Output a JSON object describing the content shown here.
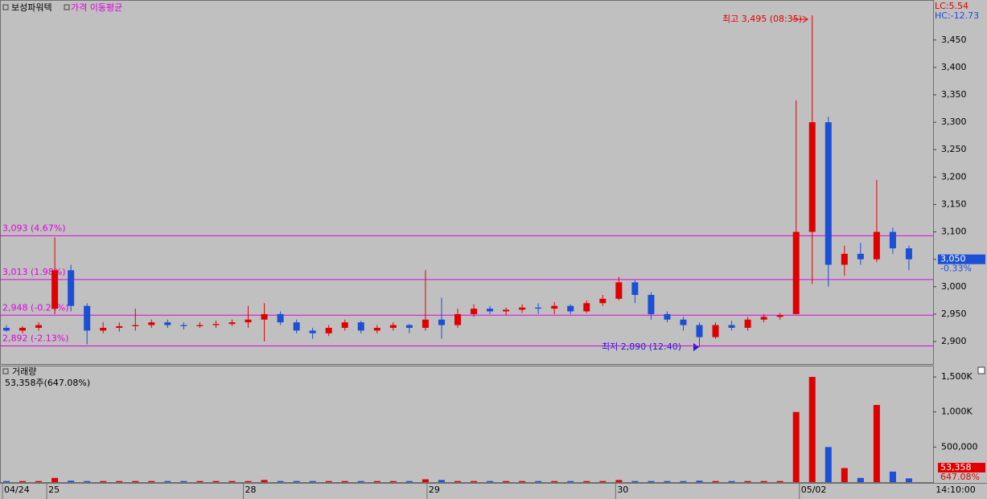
{
  "chart_data": {
    "type": "candlestick",
    "title": "보성파워텍",
    "indicator": "가격 이동평균",
    "lc": "LC:5.54",
    "hc": "HC:-12.73",
    "up_color": "#e00000",
    "down_color": "#1a4fd6",
    "ref_color": "#e000e0",
    "open": [
      2925,
      2920,
      2925,
      2960,
      3030,
      2965,
      2920,
      2925,
      2928,
      2930,
      2935,
      2930,
      2928,
      2930,
      2932,
      2935,
      2940,
      2950,
      2935,
      2920,
      2915,
      2925,
      2935,
      2920,
      2925,
      2930,
      2925,
      2940,
      2930,
      2950,
      2960,
      2955,
      2958,
      2962,
      2960,
      2965,
      2955,
      2970,
      2978,
      3008,
      2985,
      2950,
      2940,
      2930,
      2908,
      2930,
      2925,
      2940,
      2945,
      2950,
      3100,
      3300,
      3040,
      3060,
      3050,
      3100,
      3070
    ],
    "high": [
      2930,
      2928,
      2935,
      3090,
      3040,
      2970,
      2935,
      2935,
      2960,
      2940,
      2940,
      2935,
      2935,
      2938,
      2940,
      2965,
      2970,
      2955,
      2940,
      2925,
      2930,
      2940,
      2938,
      2930,
      2935,
      2932,
      3030,
      2980,
      2960,
      2968,
      2965,
      2962,
      2968,
      2970,
      2972,
      2968,
      2975,
      2985,
      3018,
      3012,
      2990,
      2955,
      2945,
      2935,
      2935,
      2938,
      2945,
      2950,
      2952,
      3340,
      3495,
      3310,
      3075,
      3080,
      3195,
      3108,
      3075
    ],
    "low": [
      2918,
      2915,
      2920,
      2950,
      2955,
      2895,
      2915,
      2918,
      2920,
      2925,
      2925,
      2922,
      2925,
      2925,
      2928,
      2925,
      2900,
      2930,
      2915,
      2905,
      2910,
      2920,
      2915,
      2915,
      2920,
      2915,
      2920,
      2905,
      2925,
      2945,
      2950,
      2948,
      2952,
      2950,
      2950,
      2950,
      2952,
      2965,
      2975,
      2970,
      2940,
      2935,
      2920,
      2890,
      2905,
      2920,
      2920,
      2935,
      2940,
      2950,
      3005,
      3000,
      3020,
      3040,
      3045,
      3060,
      3030
    ],
    "close": [
      2920,
      2925,
      2930,
      3030,
      2965,
      2920,
      2925,
      2928,
      2930,
      2935,
      2930,
      2928,
      2930,
      2932,
      2935,
      2940,
      2950,
      2935,
      2920,
      2915,
      2925,
      2935,
      2920,
      2925,
      2930,
      2925,
      2940,
      2930,
      2950,
      2960,
      2955,
      2958,
      2962,
      2960,
      2965,
      2955,
      2970,
      2978,
      3008,
      2985,
      2950,
      2940,
      2930,
      2908,
      2930,
      2925,
      2940,
      2945,
      2948,
      3100,
      3300,
      3040,
      3060,
      3050,
      3100,
      3070,
      3050
    ],
    "volume": [
      15000,
      15000,
      15000,
      60000,
      20000,
      15000,
      15000,
      15000,
      15000,
      15000,
      15000,
      15000,
      15000,
      15000,
      15000,
      15000,
      30000,
      15000,
      15000,
      15000,
      15000,
      15000,
      15000,
      15000,
      15000,
      15000,
      40000,
      30000,
      15000,
      15000,
      15000,
      15000,
      15000,
      15000,
      15000,
      15000,
      15000,
      15000,
      30000,
      15000,
      15000,
      15000,
      15000,
      20000,
      15000,
      15000,
      15000,
      15000,
      15000,
      1000000,
      1500000,
      500000,
      200000,
      60000,
      1100000,
      150000,
      53358
    ],
    "xlim": [
      -0.4,
      57.5
    ],
    "xticks": [
      {
        "value": -0.25,
        "label": "04/24"
      },
      {
        "value": 2.5,
        "label": "25"
      },
      {
        "value": 14.7,
        "label": "28"
      },
      {
        "value": 26.1,
        "label": "29"
      },
      {
        "value": 37.8,
        "label": "30"
      },
      {
        "value": 49.2,
        "label": "05/02"
      }
    ],
    "time_label": "14:10:00",
    "ylim": [
      2859,
      3523
    ],
    "yticks": [
      {
        "value": 2900,
        "label": "2,900"
      },
      {
        "value": 2950,
        "label": "2,950"
      },
      {
        "value": 3000,
        "label": "3,000"
      },
      {
        "value": 3050,
        "label": "3,050"
      },
      {
        "value": 3100,
        "label": "3,100"
      },
      {
        "value": 3150,
        "label": "3,150"
      },
      {
        "value": 3200,
        "label": "3,200"
      },
      {
        "value": 3250,
        "label": "3,250"
      },
      {
        "value": 3300,
        "label": "3,300"
      },
      {
        "value": 3350,
        "label": "3,350"
      },
      {
        "value": 3400,
        "label": "3,400"
      },
      {
        "value": 3450,
        "label": "3,450"
      }
    ],
    "ref_lines": [
      {
        "value": 3093,
        "label": "3,093 (4.67%)"
      },
      {
        "value": 3013,
        "label": "3,013 (1.98%)"
      },
      {
        "value": 2948,
        "label": "2,948 (-0.24%)"
      },
      {
        "value": 2892,
        "label": "2,892 (-2.13%)"
      }
    ],
    "current": {
      "value": 3050,
      "label": "3,050",
      "change": "-0.33%"
    },
    "high_note": "최고 3,495 (08:35)",
    "low_note": "최저 2,890 (12:40)",
    "volume_title": "거래량",
    "volume_info": "53,358주(647.08%)",
    "volume_last": {
      "label": "53,358",
      "change": "647.08%"
    },
    "vlim": [
      0,
      1661000
    ],
    "vticks": [
      {
        "value": 500000,
        "label": "500,000"
      },
      {
        "value": 1000000,
        "label": "1,000K"
      },
      {
        "value": 1500000,
        "label": "1,500K"
      }
    ]
  }
}
